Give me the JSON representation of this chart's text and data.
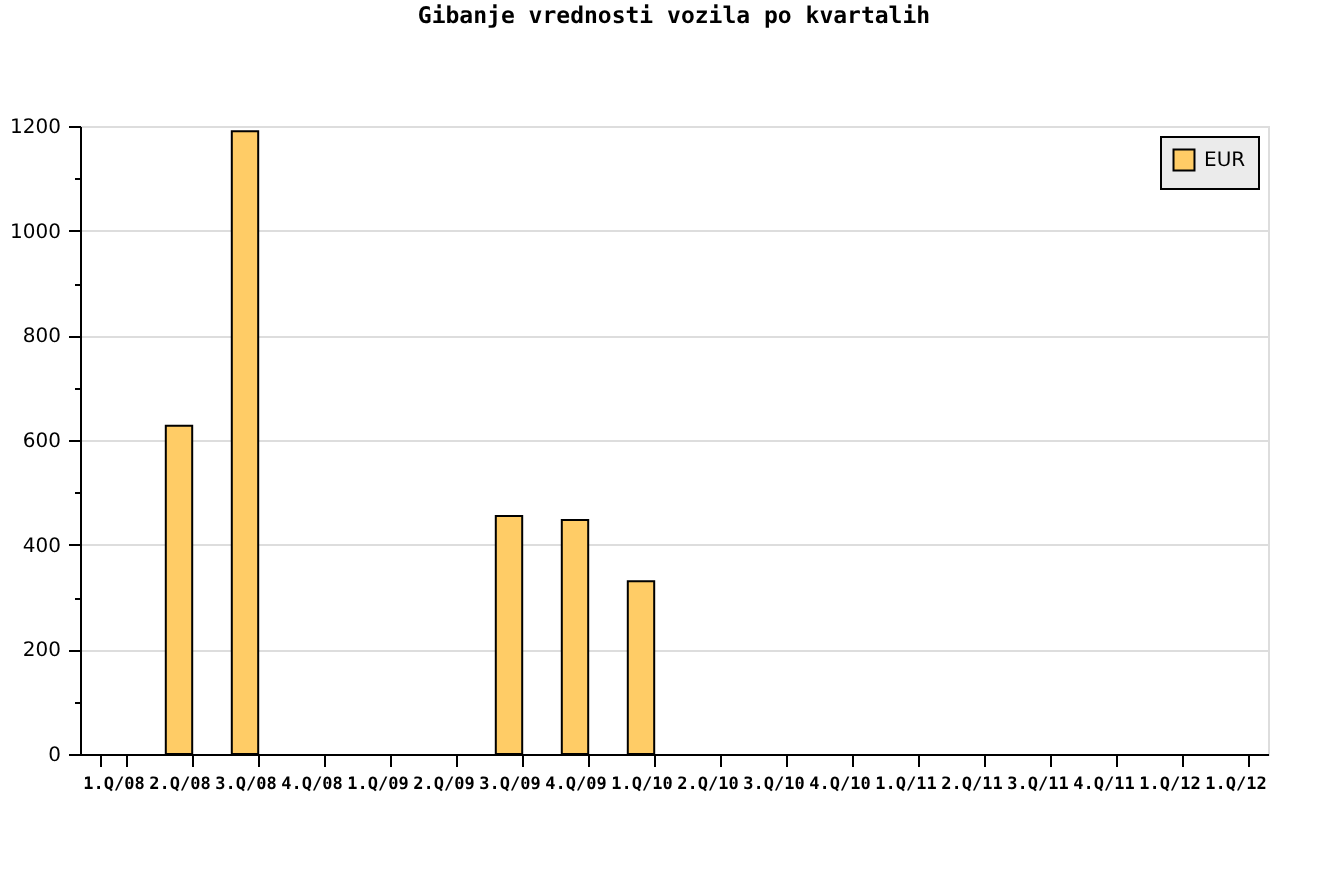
{
  "chart_data": {
    "type": "bar",
    "title": "Gibanje vrednosti vozila po kvartalih",
    "categories": [
      "1.Q/08",
      "2.Q/08",
      "3.Q/08",
      "4.Q/08",
      "1.Q/09",
      "2.Q/09",
      "3.Q/09",
      "4.Q/09",
      "1.Q/10",
      "2.Q/10",
      "3.Q/10",
      "4.Q/10",
      "1.Q/11",
      "2.Q/11",
      "3.Q/11",
      "4.Q/11",
      "1.Q/12",
      "1.Q/12"
    ],
    "series": [
      {
        "name": "EUR",
        "color": "#ffcc66",
        "values": [
          null,
          627,
          1190,
          null,
          null,
          null,
          455,
          447,
          330,
          null,
          null,
          null,
          null,
          null,
          null,
          null,
          null,
          null
        ]
      }
    ],
    "ylim": [
      0,
      1200
    ],
    "yticks": [
      0,
      {
        "value": 100,
        "label": null
      },
      200,
      {
        "value": 300,
        "label": null
      },
      400,
      {
        "value": 500,
        "label": null
      },
      600,
      {
        "value": 700,
        "label": null
      },
      800,
      {
        "value": 900,
        "label": null
      },
      1000,
      {
        "value": 1100,
        "label": null
      },
      1200
    ],
    "grid": "y",
    "legend": "top right"
  }
}
